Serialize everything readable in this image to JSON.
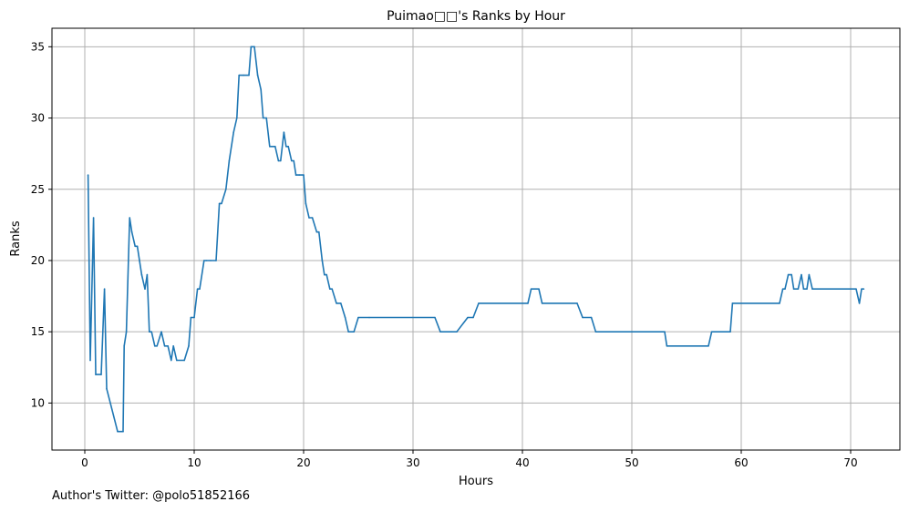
{
  "chart_data": {
    "type": "line",
    "title": "Puimao□□'s Ranks by Hour",
    "xlabel": "Hours",
    "ylabel": "Ranks",
    "xlim": [
      -3.0,
      74.5
    ],
    "ylim": [
      6.7,
      36.3
    ],
    "xticks": [
      0,
      10,
      20,
      30,
      40,
      50,
      60,
      70
    ],
    "yticks": [
      10,
      15,
      20,
      25,
      30,
      35
    ],
    "grid": true,
    "line_color": "#1f77b4",
    "series": [
      {
        "x": [
          0.3,
          0.5,
          0.8,
          1.0,
          1.5,
          1.8,
          2.0,
          3.0,
          3.5,
          3.6,
          3.8,
          4.1,
          4.3,
          4.6,
          4.8,
          5.0,
          5.2,
          5.5,
          5.7,
          5.9,
          6.1,
          6.4,
          6.6,
          7.0,
          7.3,
          7.6,
          7.9,
          8.1,
          8.4,
          9.1,
          9.5,
          9.7,
          10.0,
          10.3,
          10.5,
          10.9,
          11.1,
          11.5,
          12.0,
          12.3,
          12.5,
          12.9,
          13.2,
          13.6,
          13.9,
          14.1,
          14.5,
          15.0,
          15.2,
          15.5,
          15.8,
          16.1,
          16.3,
          16.6,
          16.9,
          17.4,
          17.7,
          17.9,
          18.2,
          18.4,
          18.6,
          18.9,
          19.1,
          19.3,
          19.6,
          20.0,
          20.2,
          20.5,
          20.8,
          21.2,
          21.4,
          21.7,
          21.9,
          22.1,
          22.4,
          22.6,
          23.0,
          23.4,
          23.8,
          24.1,
          24.6,
          25.0,
          26.0,
          32.0,
          32.5,
          33.5,
          34.0,
          35.0,
          35.5,
          36.0,
          40.5,
          40.8,
          41.5,
          41.8,
          45.0,
          45.5,
          46.3,
          46.7,
          53.0,
          53.2,
          57.0,
          57.3,
          59.0,
          59.2,
          63.5,
          63.8,
          64.0,
          64.3,
          64.6,
          64.8,
          65.2,
          65.5,
          65.7,
          66.0,
          66.2,
          66.5,
          70.5,
          70.8,
          71.0,
          71.2
        ],
        "y": [
          26,
          13,
          23,
          12,
          12,
          18,
          11,
          8,
          8,
          14,
          15,
          23,
          22,
          21,
          21,
          20,
          19,
          18,
          19,
          15,
          15,
          14,
          14,
          15,
          14,
          14,
          13,
          14,
          13,
          13,
          14,
          16,
          16,
          18,
          18,
          20,
          20,
          20,
          20,
          24,
          24,
          25,
          27,
          29,
          30,
          33,
          33,
          33,
          35,
          35,
          33,
          32,
          30,
          30,
          28,
          28,
          27,
          27,
          29,
          28,
          28,
          27,
          27,
          26,
          26,
          26,
          24,
          23,
          23,
          22,
          22,
          20,
          19,
          19,
          18,
          18,
          17,
          17,
          16,
          15,
          15,
          16,
          16,
          16,
          15,
          15,
          15,
          16,
          16,
          17,
          17,
          18,
          18,
          17,
          17,
          16,
          16,
          15,
          15,
          14,
          14,
          15,
          15,
          17,
          17,
          18,
          18,
          19,
          19,
          18,
          18,
          19,
          18,
          18,
          19,
          18,
          18,
          17,
          18,
          18
        ]
      }
    ]
  },
  "footer": {
    "text": "Author's Twitter: @polo51852166"
  }
}
